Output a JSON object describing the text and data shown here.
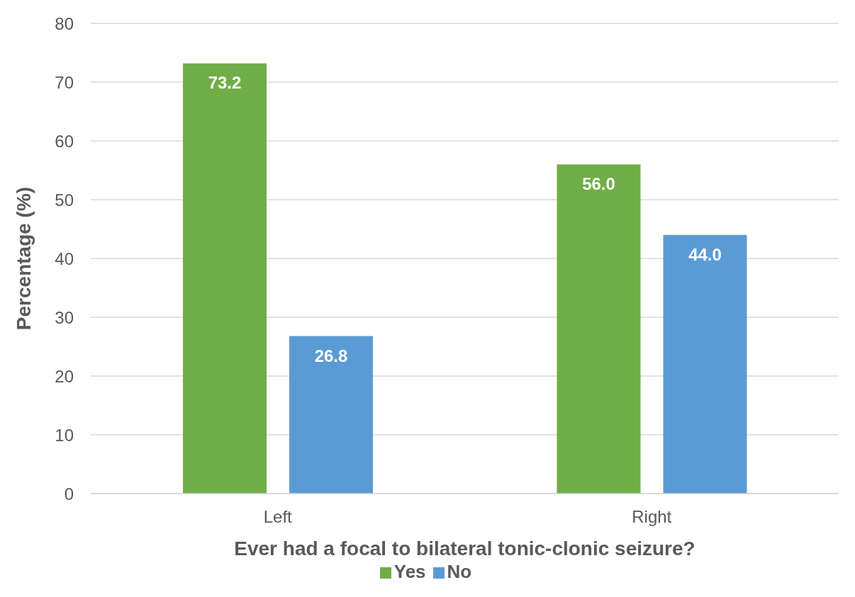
{
  "chart_data": {
    "type": "bar",
    "xlabel": "Ever had a focal to bilateral tonic-clonic seizure?",
    "ylabel": "Percentage (%)",
    "categories": [
      "Left",
      "Right"
    ],
    "series": [
      {
        "name": "Yes",
        "color": "#70ad47",
        "values": [
          73.2,
          56.0
        ],
        "value_labels": [
          "73.2",
          "56.0"
        ]
      },
      {
        "name": "No",
        "color": "#5b9bd5",
        "values": [
          26.8,
          44.0
        ],
        "value_labels": [
          "26.8",
          "44.0"
        ]
      }
    ],
    "ylim": [
      0,
      80
    ],
    "yticks": [
      0,
      10,
      20,
      30,
      40,
      50,
      60,
      70,
      80
    ],
    "grid": "y",
    "legend": "bottom"
  }
}
